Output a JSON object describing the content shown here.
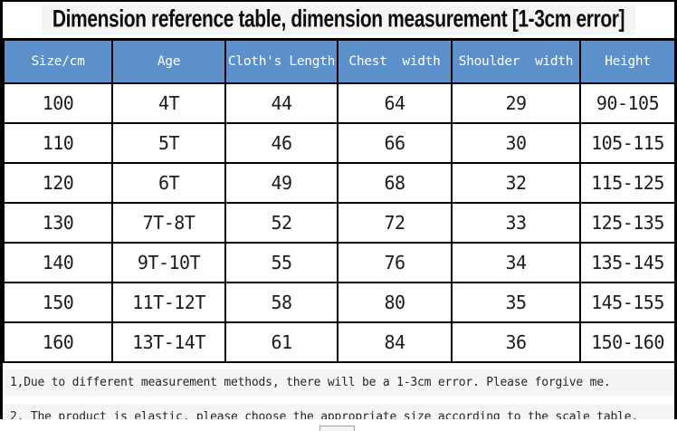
{
  "title": "Dimension reference table, dimension measurement [1-3cm error]",
  "table": {
    "columns": [
      "Size/cm",
      "Age",
      "Cloth's Length",
      "Chest  width",
      "Shoulder  width",
      "Height"
    ],
    "rows": [
      [
        "100",
        "4T",
        "44",
        "64",
        "29",
        "90-105"
      ],
      [
        "110",
        "5T",
        "46",
        "66",
        "30",
        "105-115"
      ],
      [
        "120",
        "6T",
        "49",
        "68",
        "32",
        "115-125"
      ],
      [
        "130",
        "7T-8T",
        "52",
        "72",
        "33",
        "125-135"
      ],
      [
        "140",
        "9T-10T",
        "55",
        "76",
        "34",
        "135-145"
      ],
      [
        "150",
        "11T-12T",
        "58",
        "80",
        "35",
        "145-155"
      ],
      [
        "160",
        "13T-14T",
        "61",
        "84",
        "36",
        "150-160"
      ]
    ]
  },
  "notes": [
    "1,Due to different measurement methods, there will be a 1-3cm error. Please forgive me.",
    "2. The product is elastic, please choose the appropriate size according to the scale table."
  ],
  "colors": {
    "header_bg": "#5B90CB",
    "header_text": "#FFFFFF",
    "border": "#000000",
    "note_band": "#F5F5F5"
  }
}
